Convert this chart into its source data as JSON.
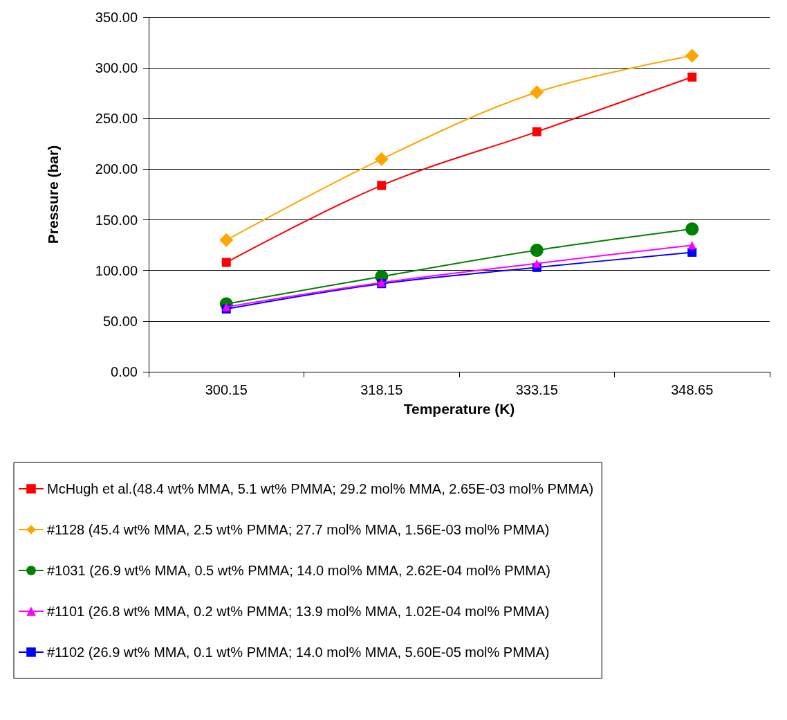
{
  "chart_data": {
    "type": "line",
    "xlabel": "Temperature (K)",
    "ylabel": "Pressure (bar)",
    "categories": [
      "300.15",
      "318.15",
      "333.15",
      "348.65"
    ],
    "series": [
      {
        "name": "McHugh et al.(48.4 wt% MMA, 5.1 wt% PMMA; 29.2 mol% MMA, 2.65E-03 mol% PMMA)",
        "color": "#ff0000",
        "marker": "square",
        "values": [
          108,
          184,
          237,
          291
        ]
      },
      {
        "name": "#1128 (45.4 wt% MMA, 2.5 wt% PMMA; 27.7 mol% MMA, 1.56E-03 mol% PMMA)",
        "color": "#ffa500",
        "marker": "diamond",
        "values": [
          130,
          210,
          276,
          312
        ]
      },
      {
        "name": "#1031 (26.9 wt% MMA, 0.5 wt% PMMA; 14.0 mol% MMA, 2.62E-04 mol% PMMA)",
        "color": "#008000",
        "marker": "circle",
        "values": [
          67,
          94,
          120,
          141
        ]
      },
      {
        "name": "#1101 (26.8 wt% MMA, 0.2 wt% PMMA; 13.9 mol% MMA, 1.02E-04 mol% PMMA)",
        "color": "#ff00ff",
        "marker": "triangle",
        "values": [
          64,
          88,
          107,
          125
        ]
      },
      {
        "name": "#1102 (26.9 wt% MMA, 0.1 wt% PMMA; 14.0 mol% MMA, 5.60E-05 mol% PMMA)",
        "color": "#0000ff",
        "marker": "square",
        "values": [
          62,
          87,
          103,
          118
        ]
      }
    ],
    "ylim": [
      0,
      350
    ],
    "yticks": [
      {
        "value": 0,
        "label": "0.00"
      },
      {
        "value": 50,
        "label": "50.00"
      },
      {
        "value": 100,
        "label": "100.00"
      },
      {
        "value": 150,
        "label": "150.00"
      },
      {
        "value": 200,
        "label": "200.00"
      },
      {
        "value": 250,
        "label": "250.00"
      },
      {
        "value": 300,
        "label": "300.00"
      },
      {
        "value": 350,
        "label": "350.00"
      }
    ],
    "grid": "y",
    "legend": "bottom",
    "line_style": "solid"
  }
}
